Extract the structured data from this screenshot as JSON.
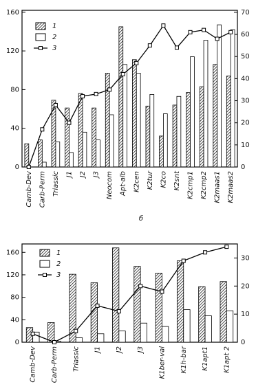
{
  "chart_data": [
    {
      "type": "bar",
      "categories": [
        "Camb-Dev",
        "Carb-Perm",
        "Triassic",
        "J1",
        "J2",
        "J3",
        "Neocom",
        "Apt-alb",
        "K2cen",
        "K2tur",
        "K2co",
        "K2snt",
        "K2cmp1",
        "K2cmp2",
        "K2maas1",
        "K2maas2"
      ],
      "series": [
        {
          "name": "1",
          "type": "bar",
          "color": "#000000",
          "pattern": "hatch",
          "values": [
            24,
            28,
            69,
            61,
            76,
            61,
            97,
            145,
            111,
            63,
            32,
            64,
            77,
            83,
            106,
            94
          ]
        },
        {
          "name": "2",
          "type": "bar",
          "color": "#ffffff",
          "values": [
            0,
            5,
            26,
            15,
            36,
            28,
            54,
            106,
            97,
            75,
            55,
            73,
            114,
            131,
            147,
            142
          ]
        },
        {
          "name": "3",
          "type": "line",
          "axis": "y2",
          "color": "#000000",
          "values": [
            0,
            17,
            28,
            20,
            32,
            33,
            35,
            42,
            47,
            55,
            64,
            54,
            61,
            62,
            58,
            61
          ]
        }
      ],
      "ylim": [
        0,
        162
      ],
      "yticks": [
        0,
        40,
        80,
        120,
        160
      ],
      "y2lim": [
        0,
        70.9
      ],
      "y2ticks": [
        0,
        10,
        20,
        30,
        40,
        50,
        60,
        70
      ],
      "grid": false,
      "legend": "upper-left"
    },
    {
      "type": "bar",
      "panel_label": "б",
      "categories": [
        "Camb-Dev",
        "Carb-Perm",
        "Triassic",
        "J1",
        "J2",
        "J3",
        "K1ber-val",
        "K1h-bar",
        "K1apt1",
        "K1apt 2"
      ],
      "series": [
        {
          "name": "1",
          "type": "bar",
          "color": "#000000",
          "pattern": "hatch",
          "values": [
            26,
            35,
            121,
            106,
            168,
            135,
            123,
            145,
            99,
            108
          ]
        },
        {
          "name": "2",
          "type": "bar",
          "color": "#ffffff",
          "values": [
            18,
            2,
            8,
            15,
            20,
            34,
            28,
            58,
            47,
            56
          ]
        },
        {
          "name": "3",
          "type": "line",
          "axis": "y2",
          "color": "#000000",
          "values": [
            3,
            0,
            4,
            13,
            11,
            20,
            18,
            29,
            32,
            34
          ]
        }
      ],
      "ylim": [
        0,
        175
      ],
      "yticks": [
        0,
        40,
        80,
        120,
        160
      ],
      "y2lim": [
        0,
        35
      ],
      "y2ticks": [
        0,
        10,
        20,
        30
      ],
      "grid": false,
      "legend": "upper-left"
    }
  ]
}
